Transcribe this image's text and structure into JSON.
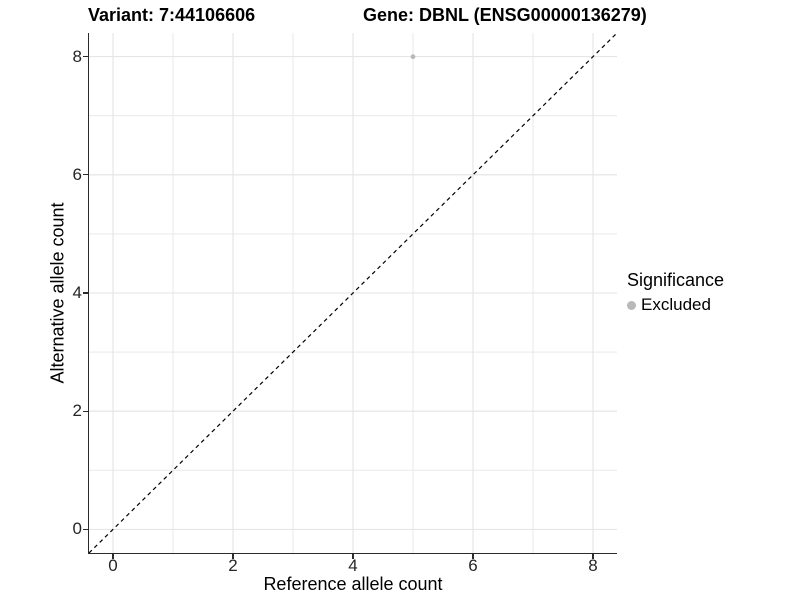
{
  "title": {
    "left": "Variant: 7:44106606",
    "right": "Gene: DBNL (ENSG00000136279)"
  },
  "axes": {
    "x_title": "Reference allele count",
    "y_title": "Alternative allele count",
    "x_tick_labels": [
      "0",
      "2",
      "4",
      "6",
      "8"
    ],
    "y_tick_labels": [
      "0",
      "2",
      "4",
      "6",
      "8"
    ]
  },
  "legend": {
    "title": "Significance",
    "items": [
      {
        "label": "Excluded",
        "color": "#b9b9b9"
      }
    ]
  },
  "colors": {
    "grid_major": "#e3e3e3",
    "grid_minor": "#e9e9e9",
    "axis_line": "#2b2b2b",
    "reference_line": "#000000",
    "point": "#b9b9b9"
  },
  "chart_data": {
    "type": "scatter",
    "title": "Variant: 7:44106606    Gene: DBNL (ENSG00000136279)",
    "xlabel": "Reference allele count",
    "ylabel": "Alternative allele count",
    "xlim": [
      -0.4,
      8.4
    ],
    "ylim": [
      -0.4,
      8.4
    ],
    "x_breaks": [
      0,
      2,
      4,
      6,
      8
    ],
    "y_breaks": [
      0,
      2,
      4,
      6,
      8
    ],
    "x_minor_breaks": [
      1,
      3,
      5,
      7
    ],
    "y_minor_breaks": [
      1,
      3,
      5,
      7
    ],
    "grid": "on",
    "legend_title": "Significance",
    "legend_position": "right",
    "series": [
      {
        "name": "Excluded",
        "color": "#b9b9b9",
        "points": [
          {
            "x": 5,
            "y": 8
          }
        ]
      }
    ],
    "reference_line": {
      "kind": "identity y=x",
      "style": "dashed",
      "color": "#000000"
    }
  }
}
